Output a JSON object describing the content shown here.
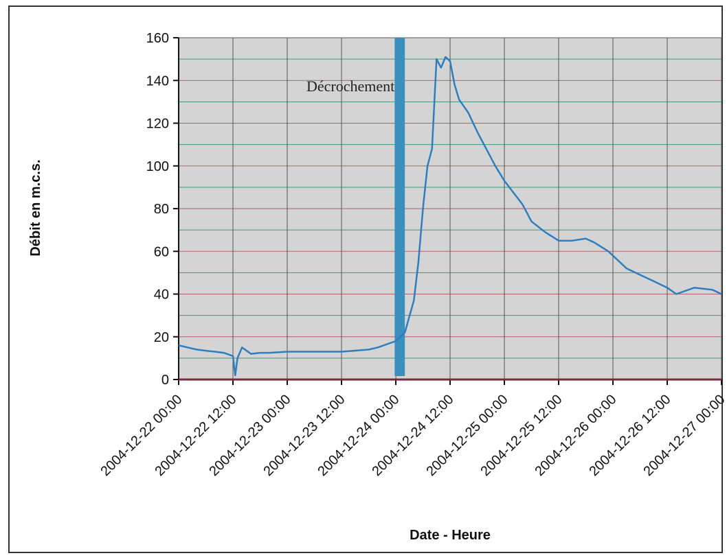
{
  "chart_data": {
    "type": "line",
    "xlabel": "Date - Heure",
    "ylabel": "Débit en m.c.s.",
    "ylim": [
      0,
      160
    ],
    "yticks": [
      0,
      20,
      40,
      60,
      80,
      100,
      120,
      140,
      160
    ],
    "xticks": [
      "2004-12-22 00:00",
      "2004-12-22 12:00",
      "2004-12-23 00:00",
      "2004-12-23 12:00",
      "2004-12-24 00:00",
      "2004-12-24 12:00",
      "2004-12-25 00:00",
      "2004-12-25 12:00",
      "2004-12-26 00:00",
      "2004-12-26 12:00",
      "2004-12-27 00:00"
    ],
    "xlim": [
      "2004-12-22 00:00",
      "2004-12-27 00:00"
    ],
    "grid": true,
    "annotation": {
      "text": "Décrochement",
      "x_start": "2004-12-23 23:45",
      "x_end": "2004-12-24 02:00"
    },
    "colors": {
      "line": "#2e7dbf",
      "band": "#3b8fbf",
      "plot_bg": "#d4d4d4",
      "grid_major": "#555555",
      "grid_red": "#b06060",
      "grid_green": "#3f9a7a"
    },
    "series": [
      {
        "x": [
          "2004-12-22 00:00",
          "2004-12-22 02:00",
          "2004-12-22 04:00",
          "2004-12-22 06:00",
          "2004-12-22 08:00",
          "2004-12-22 10:00",
          "2004-12-22 12:00",
          "2004-12-22 12:30",
          "2004-12-22 13:00",
          "2004-12-22 14:00",
          "2004-12-22 16:00",
          "2004-12-22 18:00",
          "2004-12-22 20:00",
          "2004-12-23 00:00",
          "2004-12-23 06:00",
          "2004-12-23 12:00",
          "2004-12-23 18:00",
          "2004-12-23 20:00",
          "2004-12-24 00:00",
          "2004-12-24 02:00",
          "2004-12-24 04:00",
          "2004-12-24 05:00",
          "2004-12-24 06:00",
          "2004-12-24 07:00",
          "2004-12-24 08:00",
          "2004-12-24 09:00",
          "2004-12-24 10:00",
          "2004-12-24 11:00",
          "2004-12-24 12:00",
          "2004-12-24 13:00",
          "2004-12-24 14:00",
          "2004-12-24 16:00",
          "2004-12-24 18:00",
          "2004-12-24 22:00",
          "2004-12-25 00:00",
          "2004-12-25 04:00",
          "2004-12-25 06:00",
          "2004-12-25 09:00",
          "2004-12-25 12:00",
          "2004-12-25 15:00",
          "2004-12-25 18:00",
          "2004-12-25 20:00",
          "2004-12-25 23:00",
          "2004-12-26 03:00",
          "2004-12-26 06:00",
          "2004-12-26 09:00",
          "2004-12-26 12:00",
          "2004-12-26 14:00",
          "2004-12-26 18:00",
          "2004-12-26 22:00",
          "2004-12-27 00:00"
        ],
        "y": [
          16,
          15,
          14,
          13.5,
          13,
          12.5,
          11,
          2,
          10,
          15,
          12,
          12.5,
          12.5,
          13,
          13,
          13,
          14,
          15,
          18,
          22,
          37,
          55,
          80,
          100,
          108,
          150,
          146,
          151,
          149,
          138,
          131,
          125,
          116,
          100,
          93,
          82,
          74,
          69,
          65,
          65,
          66,
          64,
          60,
          52,
          49,
          46,
          43,
          40,
          43,
          42,
          40
        ]
      }
    ]
  }
}
